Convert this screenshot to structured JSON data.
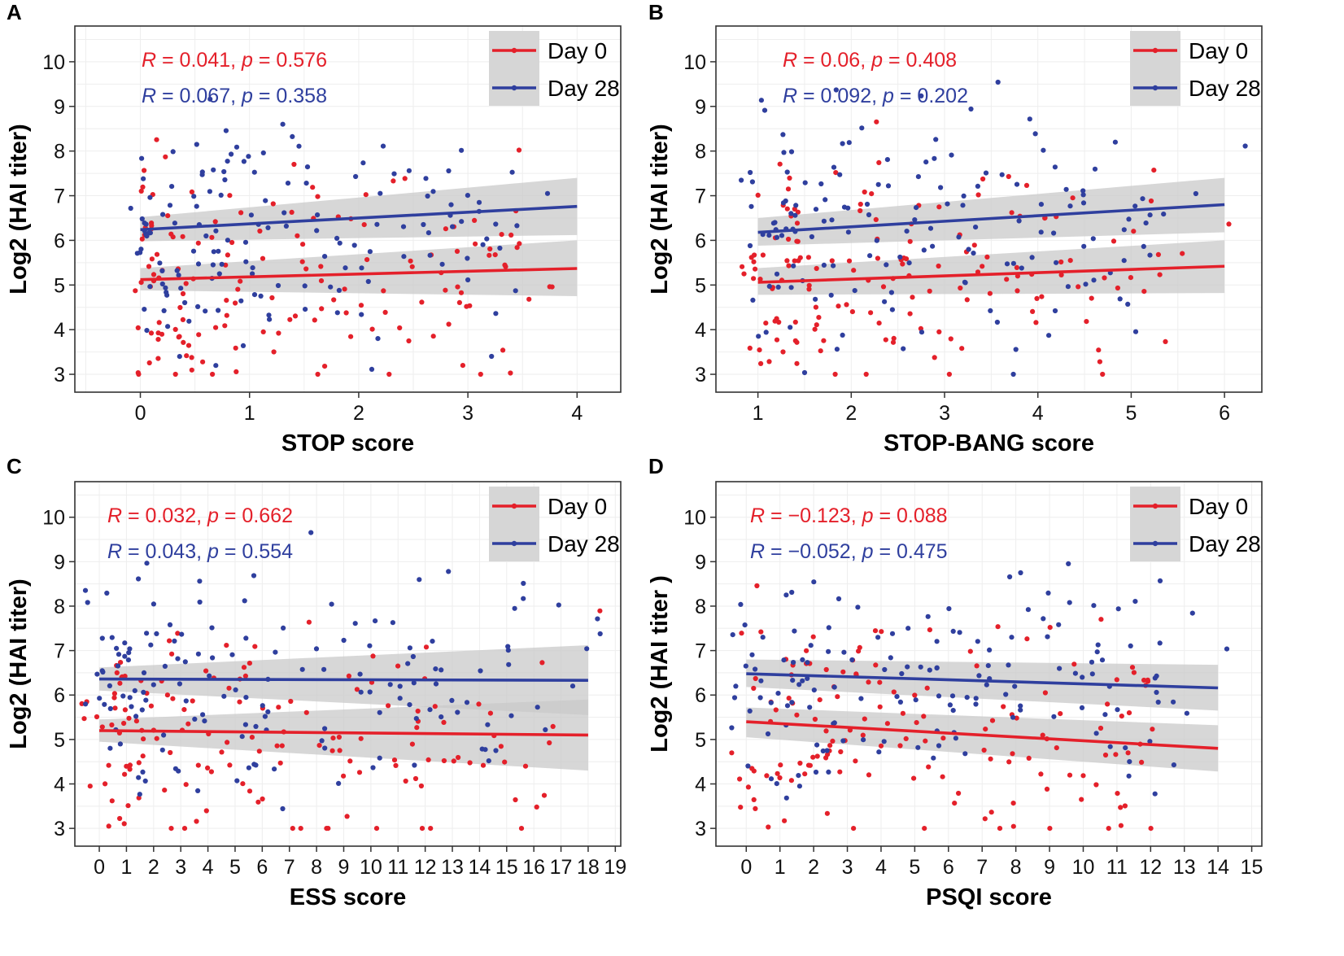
{
  "colors": {
    "day0": "#e4202a",
    "day28": "#2f3f9e",
    "ci": "#c9c9c9",
    "grid": "#eeeeee",
    "frame": "#333333"
  },
  "chart_data": [
    {
      "panel": "A",
      "type": "scatter",
      "xlabel": "STOP score",
      "ylabel": "Log2 (HAI titer)",
      "xlim": [
        -0.6,
        4.4
      ],
      "ylim": [
        2.6,
        10.8
      ],
      "xticks": [
        "0",
        "1",
        "2",
        "3",
        "4"
      ],
      "yticks": [
        "3",
        "4",
        "5",
        "6",
        "7",
        "8",
        "9",
        "10"
      ],
      "legend": [
        "Day 0",
        "Day 28"
      ],
      "stats": [
        {
          "series": "Day 0",
          "R_label": "R",
          "text": " = 0.041, ",
          "p_label": "p",
          "p_text": " = 0.576"
        },
        {
          "series": "Day 28",
          "R_label": "R",
          "text": " = 0.067, ",
          "p_label": "p",
          "p_text": " = 0.358"
        }
      ],
      "fits": [
        {
          "series": "Day 0",
          "x": [
            0,
            4
          ],
          "y": [
            5.12,
            5.37
          ],
          "ci": [
            [
              0,
              4.88,
              5.38
            ],
            [
              4,
              4.75,
              6.0
            ]
          ]
        },
        {
          "series": "Day 28",
          "x": [
            0,
            4
          ],
          "y": [
            6.24,
            6.76
          ],
          "ci": [
            [
              0,
              5.98,
              6.52
            ],
            [
              4,
              6.12,
              7.4
            ]
          ]
        }
      ]
    },
    {
      "panel": "B",
      "type": "scatter",
      "xlabel": "STOP-BANG score",
      "ylabel": "Log2 (HAI titer)",
      "xlim": [
        0.55,
        6.4
      ],
      "ylim": [
        2.6,
        10.8
      ],
      "xticks": [
        "1",
        "2",
        "3",
        "4",
        "5",
        "6"
      ],
      "yticks": [
        "3",
        "4",
        "5",
        "6",
        "7",
        "8",
        "9",
        "10"
      ],
      "legend": [
        "Day 0",
        "Day 28"
      ],
      "stats": [
        {
          "series": "Day 0",
          "R_label": "R",
          "text": " = 0.06, ",
          "p_label": "p",
          "p_text": " = 0.408"
        },
        {
          "series": "Day 28",
          "R_label": "R",
          "text": " = 0.092, ",
          "p_label": "p",
          "p_text": " = 0.202"
        }
      ],
      "fits": [
        {
          "series": "Day 0",
          "x": [
            1,
            6
          ],
          "y": [
            5.06,
            5.42
          ],
          "ci": [
            [
              1,
              4.78,
              5.38
            ],
            [
              6,
              4.82,
              6.0
            ]
          ]
        },
        {
          "series": "Day 28",
          "x": [
            1,
            6
          ],
          "y": [
            6.18,
            6.8
          ],
          "ci": [
            [
              1,
              5.88,
              6.5
            ],
            [
              6,
              6.18,
              7.4
            ]
          ]
        }
      ]
    },
    {
      "panel": "C",
      "type": "scatter",
      "xlabel": "ESS score",
      "ylabel": "Log2 (HAI titer)",
      "xlim": [
        -0.9,
        19.2
      ],
      "ylim": [
        2.6,
        10.8
      ],
      "xticks": [
        "0",
        "1",
        "2",
        "3",
        "4",
        "5",
        "6",
        "7",
        "8",
        "9",
        "10",
        "11",
        "12",
        "13",
        "14",
        "15",
        "16",
        "17",
        "18",
        "19"
      ],
      "yticks": [
        "3",
        "4",
        "5",
        "6",
        "7",
        "8",
        "9",
        "10"
      ],
      "legend": [
        "Day 0",
        "Day 28"
      ],
      "stats": [
        {
          "series": "Day 0",
          "R_label": "R",
          "text": " = 0.032, ",
          "p_label": "p",
          "p_text": " = 0.662"
        },
        {
          "series": "Day 28",
          "R_label": "R",
          "text": " = 0.043, ",
          "p_label": "p",
          "p_text": " = 0.554"
        }
      ],
      "fits": [
        {
          "series": "Day 0",
          "x": [
            0,
            18
          ],
          "y": [
            5.2,
            5.1
          ],
          "ci": [
            [
              0,
              4.95,
              5.45
            ],
            [
              18,
              4.3,
              5.9
            ]
          ]
        },
        {
          "series": "Day 28",
          "x": [
            0,
            18
          ],
          "y": [
            6.36,
            6.33
          ],
          "ci": [
            [
              0,
              6.1,
              6.62
            ],
            [
              18,
              5.55,
              7.12
            ]
          ]
        }
      ]
    },
    {
      "panel": "D",
      "type": "scatter",
      "xlabel": "PSQI score",
      "ylabel": "Log2 (HAI titer )",
      "xlim": [
        -0.9,
        15.3
      ],
      "ylim": [
        2.6,
        10.8
      ],
      "xticks": [
        "0",
        "1",
        "2",
        "3",
        "4",
        "5",
        "6",
        "7",
        "8",
        "9",
        "10",
        "11",
        "12",
        "13",
        "14",
        "15"
      ],
      "yticks": [
        "3",
        "4",
        "5",
        "6",
        "7",
        "8",
        "9",
        "10"
      ],
      "legend": [
        "Day 0",
        "Day 28"
      ],
      "stats": [
        {
          "series": "Day 0",
          "R_label": "R",
          "text": " = −0.123, ",
          "p_label": "p",
          "p_text": " = 0.088"
        },
        {
          "series": "Day 28",
          "R_label": "R",
          "text": " = −0.052, ",
          "p_label": "p",
          "p_text": " = 0.475"
        }
      ],
      "fits": [
        {
          "series": "Day 0",
          "x": [
            0,
            14
          ],
          "y": [
            5.4,
            4.8
          ],
          "ci": [
            [
              0,
              5.05,
              5.72
            ],
            [
              14,
              4.28,
              5.32
            ]
          ]
        },
        {
          "series": "Day 28",
          "x": [
            0,
            14
          ],
          "y": [
            6.48,
            6.16
          ],
          "ci": [
            [
              0,
              6.18,
              6.8
            ],
            [
              14,
              5.65,
              6.68
            ]
          ]
        }
      ]
    }
  ]
}
